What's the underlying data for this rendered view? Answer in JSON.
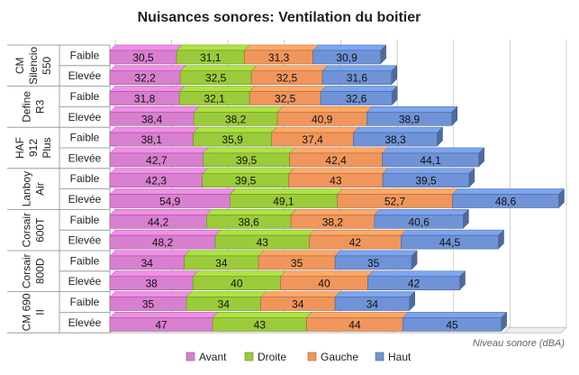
{
  "chart_data": {
    "type": "bar",
    "orientation": "horizontal",
    "stacked": true,
    "title": "Nuisances sonores: Ventilation du boitier",
    "xlabel": "Niveau sonore (dBA)",
    "ylabel": "",
    "grid": true,
    "legend_position": "bottom",
    "groups": [
      "CM Silencio 550",
      "Define R3",
      "HAF 912 Plus",
      "Lanboy Air",
      "Corsair 600T",
      "Corsair 800D",
      "CM 690 II"
    ],
    "categories": [
      {
        "group": "CM Silencio 550",
        "label": "Faible"
      },
      {
        "group": "CM Silencio 550",
        "label": "Elevée"
      },
      {
        "group": "Define R3",
        "label": "Faible"
      },
      {
        "group": "Define R3",
        "label": "Elevée"
      },
      {
        "group": "HAF 912 Plus",
        "label": "Faible"
      },
      {
        "group": "HAF 912 Plus",
        "label": "Elevée"
      },
      {
        "group": "Lanboy Air",
        "label": "Faible"
      },
      {
        "group": "Lanboy Air",
        "label": "Elevée"
      },
      {
        "group": "Corsair 600T",
        "label": "Faible"
      },
      {
        "group": "Corsair 600T",
        "label": "Elevée"
      },
      {
        "group": "Corsair 800D",
        "label": "Faible"
      },
      {
        "group": "Corsair 800D",
        "label": "Elevée"
      },
      {
        "group": "CM 690 II",
        "label": "Faible"
      },
      {
        "group": "CM 690 II",
        "label": "Elevée"
      }
    ],
    "series": [
      {
        "name": "Avant",
        "color": "#d97fd0",
        "values": [
          "30,5",
          "32,2",
          "31,8",
          "38,4",
          "38,1",
          "42,7",
          "42,3",
          "54,9",
          "44,2",
          "48,2",
          "34",
          "38",
          "35",
          "47"
        ]
      },
      {
        "name": "Droite",
        "color": "#9bcb3b",
        "values": [
          "31,1",
          "32,5",
          "32,1",
          "38,2",
          "35,9",
          "39,5",
          "39,5",
          "49,1",
          "38,6",
          "43",
          "34",
          "40",
          "34",
          "43"
        ]
      },
      {
        "name": "Gauche",
        "color": "#f0965c",
        "values": [
          "31,3",
          "32,5",
          "32,5",
          "40,9",
          "37,4",
          "42,4",
          "43",
          "52,7",
          "38,2",
          "42",
          "35",
          "40",
          "34",
          "44"
        ]
      },
      {
        "name": "Haut",
        "color": "#6f93d6",
        "values": [
          "30,9",
          "31,6",
          "32,6",
          "38,9",
          "38,3",
          "44,1",
          "39,5",
          "48,6",
          "40,6",
          "44,5",
          "35",
          "42",
          "34",
          "45"
        ]
      }
    ]
  }
}
